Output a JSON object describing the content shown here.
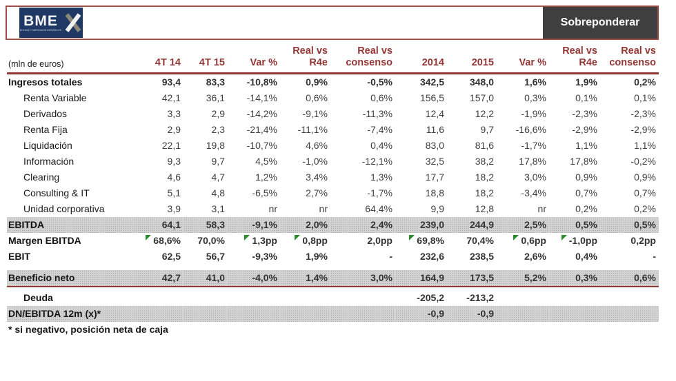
{
  "banner": {
    "logo": {
      "text": "BME",
      "tagline": "BOLSAS Y MERCADOS ESPAÑOLES"
    },
    "rating_label": "Sobreponderar"
  },
  "colors": {
    "maroon": "#943634",
    "banner_border": "#a04a44",
    "logo_navy": "#1f3864",
    "rating_bg": "#3f3f3f",
    "shaded_row": "#d2d2d2",
    "flag_green": "#2a8c2a"
  },
  "table": {
    "unit_label": "(mln de euros)",
    "columns": [
      "4T 14",
      "4T 15",
      "Var %",
      "Real vs\nR4e",
      "Real vs\nconsenso",
      "2014",
      "2015",
      "Var %",
      "Real vs\nR4e",
      "Real vs\nconsenso"
    ],
    "rows": [
      {
        "type": "data",
        "label": "Ingresos totales",
        "style": "main",
        "shaded": false,
        "values": [
          "93,4",
          "83,3",
          "-10,8%",
          "0,9%",
          "-0,5%",
          "342,5",
          "348,0",
          "1,6%",
          "1,9%",
          "0,2%"
        ]
      },
      {
        "type": "data",
        "label": "Renta Variable",
        "style": "sub",
        "shaded": false,
        "values": [
          "42,1",
          "36,1",
          "-14,1%",
          "0,6%",
          "0,6%",
          "156,5",
          "157,0",
          "0,3%",
          "0,1%",
          "0,1%"
        ]
      },
      {
        "type": "data",
        "label": "Derivados",
        "style": "sub",
        "shaded": false,
        "values": [
          "3,3",
          "2,9",
          "-14,2%",
          "-9,1%",
          "-11,3%",
          "12,4",
          "12,2",
          "-1,9%",
          "-2,3%",
          "-2,3%"
        ]
      },
      {
        "type": "data",
        "label": "Renta Fija",
        "style": "sub",
        "shaded": false,
        "values": [
          "2,9",
          "2,3",
          "-21,4%",
          "-11,1%",
          "-7,4%",
          "11,6",
          "9,7",
          "-16,6%",
          "-2,9%",
          "-2,9%"
        ]
      },
      {
        "type": "data",
        "label": "Liquidación",
        "style": "sub",
        "shaded": false,
        "values": [
          "22,1",
          "19,8",
          "-10,7%",
          "4,6%",
          "0,4%",
          "83,0",
          "81,6",
          "-1,7%",
          "1,1%",
          "1,1%"
        ]
      },
      {
        "type": "data",
        "label": "Información",
        "style": "sub",
        "shaded": false,
        "values": [
          "9,3",
          "9,7",
          "4,5%",
          "-1,0%",
          "-12,1%",
          "32,5",
          "38,2",
          "17,8%",
          "17,8%",
          "-0,2%"
        ]
      },
      {
        "type": "data",
        "label": "Clearing",
        "style": "sub",
        "shaded": false,
        "values": [
          "4,6",
          "4,7",
          "1,2%",
          "3,4%",
          "1,3%",
          "17,7",
          "18,2",
          "3,0%",
          "0,9%",
          "0,9%"
        ]
      },
      {
        "type": "data",
        "label": "Consulting & IT",
        "style": "sub",
        "shaded": false,
        "values": [
          "5,1",
          "4,8",
          "-6,5%",
          "2,7%",
          "-1,7%",
          "18,8",
          "18,2",
          "-3,4%",
          "0,7%",
          "0,7%"
        ]
      },
      {
        "type": "data",
        "label": "Unidad corporativa",
        "style": "sub",
        "shaded": false,
        "values": [
          "3,9",
          "3,1",
          "nr",
          "nr",
          "64,4%",
          "9,9",
          "12,8",
          "nr",
          "0,2%",
          "0,2%"
        ]
      },
      {
        "type": "data",
        "label": "EBITDA",
        "style": "main",
        "shaded": true,
        "values": [
          "64,1",
          "58,3",
          "-9,1%",
          "2,0%",
          "2,4%",
          "239,0",
          "244,9",
          "2,5%",
          "0,5%",
          "0,5%"
        ]
      },
      {
        "type": "data",
        "label": "Margen EBITDA",
        "style": "main",
        "shaded": false,
        "values": [
          "68,6%",
          "70,0%",
          "1,3pp",
          "0,8pp",
          "2,0pp",
          "69,8%",
          "70,4%",
          "0,6pp",
          "-1,0pp",
          "0,2pp"
        ],
        "flags": [
          0,
          2,
          3,
          5,
          7,
          8
        ]
      },
      {
        "type": "data",
        "label": "EBIT",
        "style": "main",
        "shaded": false,
        "values": [
          "62,5",
          "56,7",
          "-9,3%",
          "1,9%",
          "-",
          "232,6",
          "238,5",
          "2,6%",
          "0,4%",
          "-"
        ]
      },
      {
        "type": "spacer"
      },
      {
        "type": "data",
        "label": "Beneficio neto",
        "style": "main",
        "shaded": true,
        "values": [
          "42,7",
          "41,0",
          "-4,0%",
          "1,4%",
          "3,0%",
          "164,9",
          "173,5",
          "5,2%",
          "0,3%",
          "0,6%"
        ]
      },
      {
        "type": "divider"
      },
      {
        "type": "data",
        "label": "Deuda",
        "style": "main indent",
        "shaded": false,
        "values": [
          "",
          "",
          "",
          "",
          "",
          "-205,2",
          "-213,2",
          "",
          "",
          ""
        ]
      },
      {
        "type": "data",
        "label": "DN/EBITDA 12m (x)*",
        "style": "main",
        "shaded": true,
        "values": [
          "",
          "",
          "",
          "",
          "",
          "-0,9",
          "-0,9",
          "",
          "",
          ""
        ]
      }
    ],
    "footnote": "* si negativo, posición neta de caja"
  }
}
